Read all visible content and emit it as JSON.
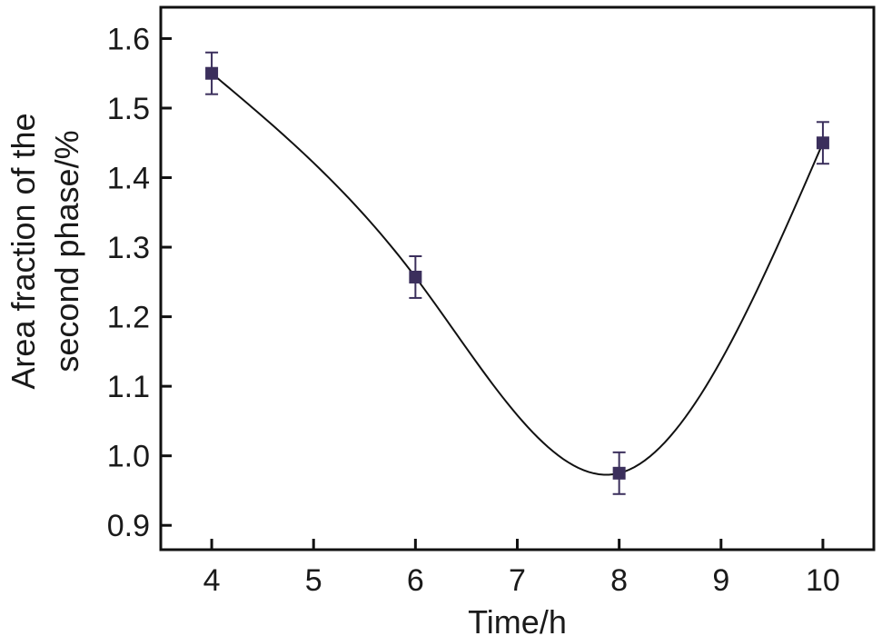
{
  "chart_data": {
    "type": "line",
    "title": "",
    "xlabel": "Time/h",
    "ylabel_lines": [
      "Area fraction of the",
      "second phase/%"
    ],
    "xlim": [
      3.5,
      10.5
    ],
    "ylim": [
      0.865,
      1.645
    ],
    "x_ticks": [
      4,
      5,
      6,
      7,
      8,
      9,
      10
    ],
    "y_ticks": [
      0.9,
      1.0,
      1.1,
      1.2,
      1.3,
      1.4,
      1.5,
      1.6
    ],
    "y_tick_decimals": 1,
    "grid": false,
    "legend": "none",
    "series": [
      {
        "x": [
          4,
          6,
          8,
          10
        ],
        "y": [
          1.55,
          1.257,
          0.975,
          1.45
        ],
        "error": [
          0.03,
          0.03,
          0.03,
          0.03
        ],
        "marker": "square",
        "curve": "smooth"
      }
    ],
    "colors": {
      "marker": "#3b2f5c",
      "line": "#111111",
      "axis": "#111111"
    }
  }
}
